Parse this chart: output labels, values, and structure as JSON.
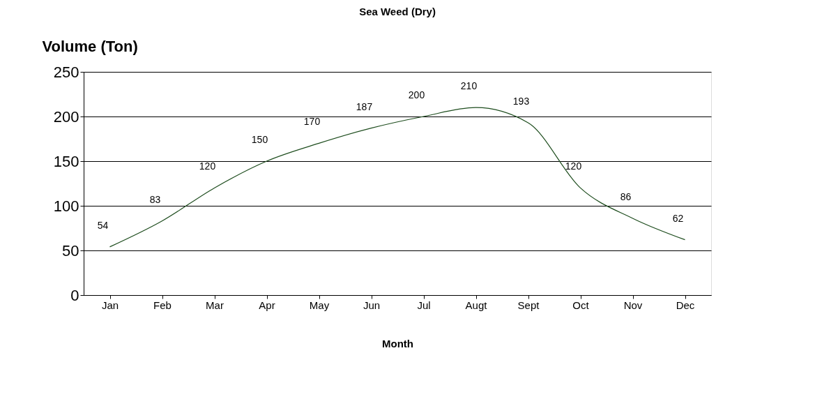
{
  "chart_data": {
    "type": "line",
    "title": "Sea Weed (Dry)",
    "xlabel": "Month",
    "ylabel": "Volume (Ton)",
    "categories": [
      "Jan",
      "Feb",
      "Mar",
      "Apr",
      "May",
      "Jun",
      "Jul",
      "Augt",
      "Sept",
      "Oct",
      "Nov",
      "Dec"
    ],
    "series": [
      {
        "color": "#1e4d1e",
        "values": [
          54,
          83,
          120,
          150,
          170,
          187,
          200,
          210,
          193,
          120,
          86,
          62
        ]
      }
    ],
    "ylim": [
      0,
      250
    ],
    "yticks": [
      0,
      50,
      100,
      150,
      200,
      250
    ],
    "grid": "y",
    "data_labels": true,
    "marker": "none",
    "line_style": "solid",
    "legend": false
  }
}
